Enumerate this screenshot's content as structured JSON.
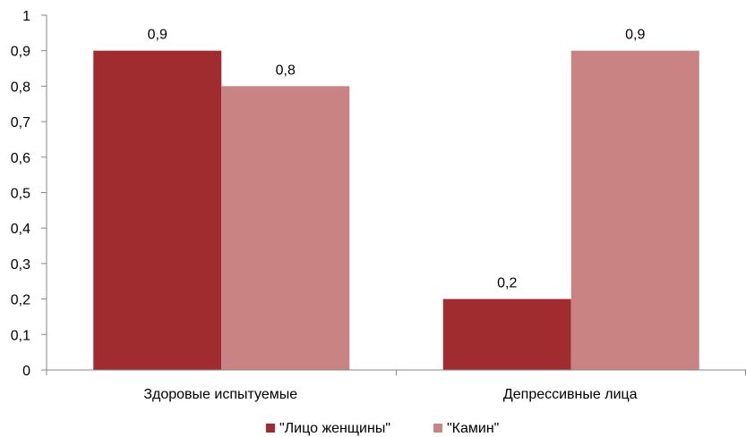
{
  "chart_data": {
    "type": "bar",
    "categories": [
      "Здоровые испытуемые",
      "Депрессивные лица"
    ],
    "series": [
      {
        "name": "\"Лицо женщины\"",
        "values": [
          0.9,
          0.2
        ],
        "color": "#a02c30"
      },
      {
        "name": "\"Камин\"",
        "values": [
          0.8,
          0.9
        ],
        "color": "#c98383"
      }
    ],
    "data_labels": [
      [
        "0,9",
        "0,2"
      ],
      [
        "0,8",
        "0,9"
      ]
    ],
    "yticks": [
      "0",
      "0,1",
      "0,2",
      "0,3",
      "0,4",
      "0,5",
      "0,6",
      "0,7",
      "0,8",
      "0,9",
      "1"
    ],
    "ylim": [
      0,
      1
    ],
    "grid": false,
    "legend_position": "bottom",
    "axis_color": "#868686"
  }
}
